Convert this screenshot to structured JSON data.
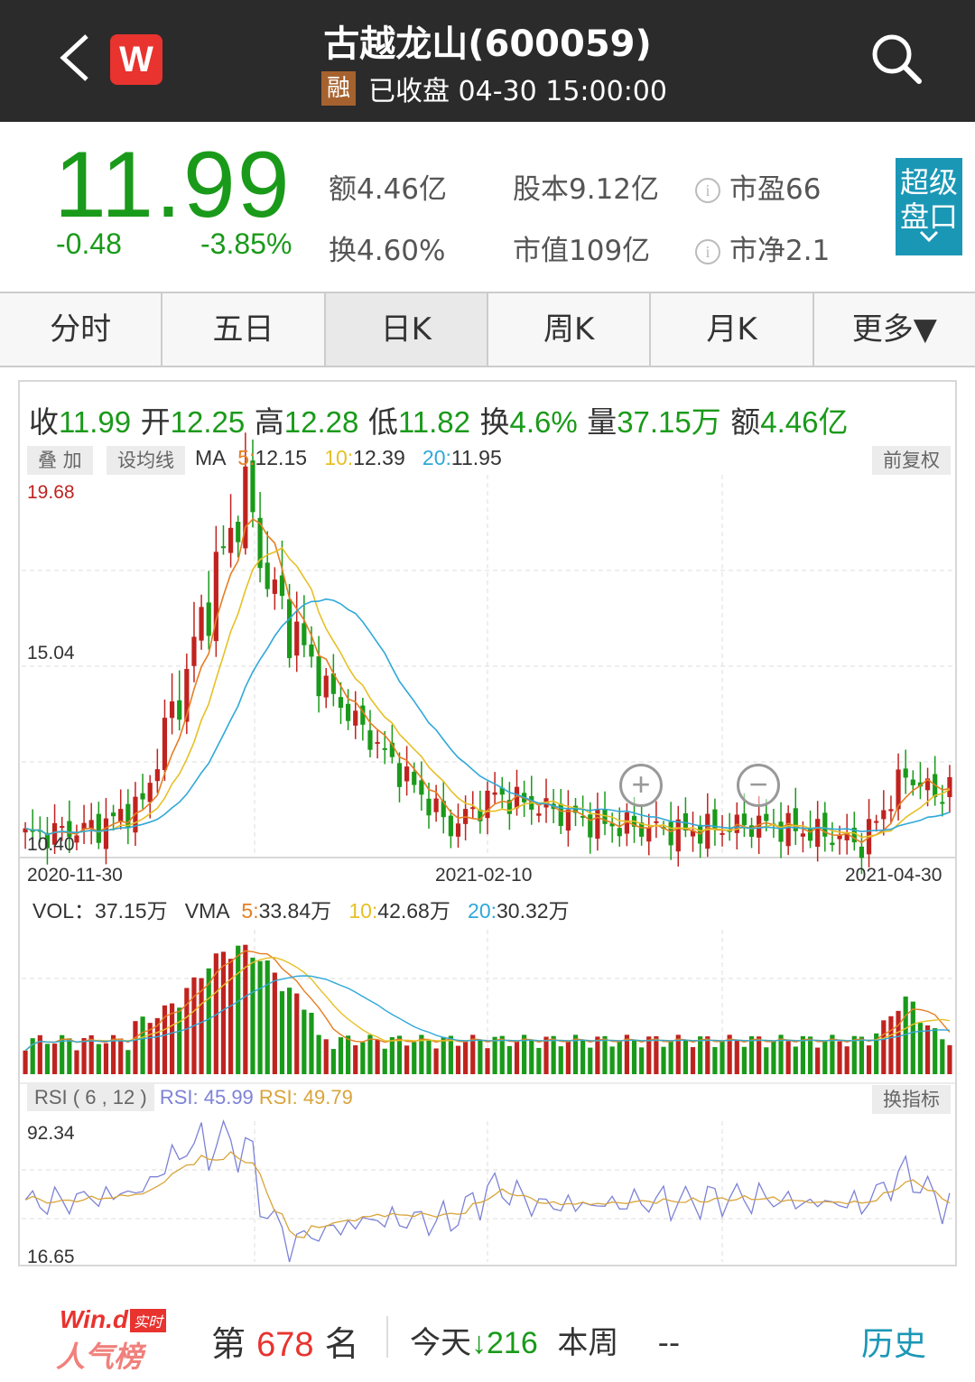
{
  "header": {
    "title": "古越龙山(600059)",
    "badge": "融",
    "status": "已收盘 04-30 15:00:00",
    "logo_text": "W"
  },
  "quote": {
    "price": "11.99",
    "change": "-0.48",
    "change_pct": "-3.85%",
    "amount": "额4.46亿",
    "turnover": "换4.60%",
    "shares": "股本9.12亿",
    "market_cap": "市值109亿",
    "pe": "市盈66",
    "pb": "市净2.1",
    "super_panel": "超级盘口",
    "down_color": "#1a9a1a",
    "up_color": "#c0231f"
  },
  "tabs": [
    {
      "label": "分时",
      "active": false
    },
    {
      "label": "五日",
      "active": false
    },
    {
      "label": "日K",
      "active": true
    },
    {
      "label": "周K",
      "active": false
    },
    {
      "label": "月K",
      "active": false
    },
    {
      "label": "更多▼",
      "active": false
    }
  ],
  "kline": {
    "close_label": "收",
    "close": "11.99",
    "open_label": "开",
    "open": "12.25",
    "high_label": "高",
    "high": "12.28",
    "low_label": "低",
    "low": "11.82",
    "turnover_label": "换",
    "turnover": "4.6%",
    "volume_label": "量",
    "volume": "37.15万",
    "amount_label": "额",
    "amount": "4.46亿",
    "overlay_btn": "叠 加",
    "ma_btn": "设均线",
    "ma_label": "MA",
    "ma5_key": "5",
    "ma5": "12.15",
    "ma10_key": "10",
    "ma10": "12.39",
    "ma20_key": "20",
    "ma20": "11.95",
    "adjust_btn": "前复权",
    "price_max": "19.68",
    "price_mid": "15.04",
    "price_min": "10.40",
    "dates": [
      "2020-11-30",
      "2021-02-10",
      "2021-04-30"
    ],
    "zoom_in": "+",
    "zoom_out": "−"
  },
  "volume": {
    "label": "VOL：37.15万",
    "vma_label": "VMA",
    "v5_key": "5",
    "v5": "33.84万",
    "v10_key": "10",
    "v10": "42.68万",
    "v20_key": "20",
    "v20": "30.32万"
  },
  "rsi": {
    "title": "RSI ( 6 , 12 )",
    "rsi1": "RSI: 45.99",
    "rsi2": "RSI: 49.79",
    "switch_btn": "换指标",
    "max": "92.34",
    "min": "16.65"
  },
  "footer": {
    "logo_top": "Win.d",
    "logo_tag": "实时",
    "logo_bottom": "人气榜",
    "rank_prefix": "第",
    "rank": "678",
    "rank_suffix": "名",
    "today_label": "今天",
    "today_arrow": "↓",
    "today_value": "216",
    "week_label": "本周",
    "week_value": "--",
    "history": "历史"
  }
}
